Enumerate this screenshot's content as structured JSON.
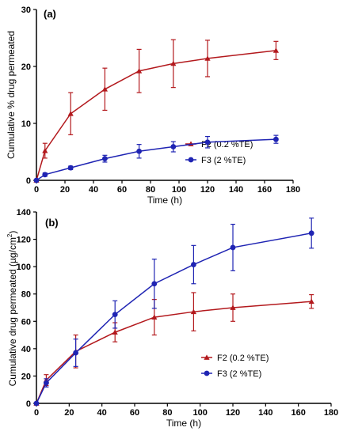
{
  "chart_data": [
    {
      "type": "line",
      "panel_label": "(a)",
      "xlabel": "Time (h)",
      "ylabel": "Cumulative % drug permeated",
      "ylabel_superscript": "",
      "ylabel_suffix": "",
      "xlim": [
        0,
        180
      ],
      "ylim": [
        0,
        30
      ],
      "xticks": [
        0,
        20,
        40,
        60,
        80,
        100,
        120,
        140,
        160,
        180
      ],
      "yticks": [
        0,
        10,
        20,
        30
      ],
      "grid": false,
      "legend_position": "right-middle",
      "series": [
        {
          "name": "F2 (0.2 %TE)",
          "color": "#b3191d",
          "marker": "triangle",
          "x": [
            0,
            6,
            24,
            48,
            72,
            96,
            120,
            168
          ],
          "y": [
            0,
            5.2,
            11.7,
            16.0,
            19.2,
            20.5,
            21.4,
            22.8
          ],
          "err": [
            0,
            1.3,
            3.7,
            3.7,
            3.8,
            4.2,
            3.2,
            1.6
          ]
        },
        {
          "name": "F3 (2 %TE)",
          "color": "#1f24b3",
          "marker": "circle",
          "x": [
            0,
            6,
            24,
            48,
            72,
            96,
            120,
            168
          ],
          "y": [
            0,
            1.0,
            2.2,
            3.8,
            5.1,
            5.9,
            6.7,
            7.2
          ],
          "err": [
            0,
            0.3,
            0.3,
            0.6,
            1.2,
            0.9,
            1.0,
            0.7
          ]
        }
      ]
    },
    {
      "type": "line",
      "panel_label": "(b)",
      "xlabel": "Time (h)",
      "ylabel": "Cumulative drug permeated (µg/cm",
      "ylabel_superscript": "2",
      "ylabel_suffix": ")",
      "xlim": [
        0,
        180
      ],
      "ylim": [
        0,
        140
      ],
      "xticks": [
        0,
        20,
        40,
        60,
        80,
        100,
        120,
        140,
        160,
        180
      ],
      "yticks": [
        0,
        20,
        40,
        60,
        80,
        100,
        120,
        140
      ],
      "grid": false,
      "legend_position": "bottom-right",
      "series": [
        {
          "name": "F2 (0.2 %TE)",
          "color": "#b3191d",
          "marker": "triangle",
          "x": [
            0,
            6,
            24,
            48,
            72,
            96,
            120,
            168
          ],
          "y": [
            0,
            17,
            38,
            52,
            63,
            67,
            70,
            74.5
          ],
          "err": [
            0,
            4,
            12,
            7,
            13,
            14,
            10,
            5
          ]
        },
        {
          "name": "F3 (2 %TE)",
          "color": "#1f24b3",
          "marker": "circle",
          "x": [
            0,
            6,
            24,
            48,
            72,
            96,
            120,
            168
          ],
          "y": [
            0,
            15,
            37,
            65,
            87.5,
            101.5,
            114,
            124.5
          ],
          "err": [
            0,
            3,
            10,
            10,
            18,
            14,
            17,
            11
          ]
        }
      ]
    }
  ]
}
